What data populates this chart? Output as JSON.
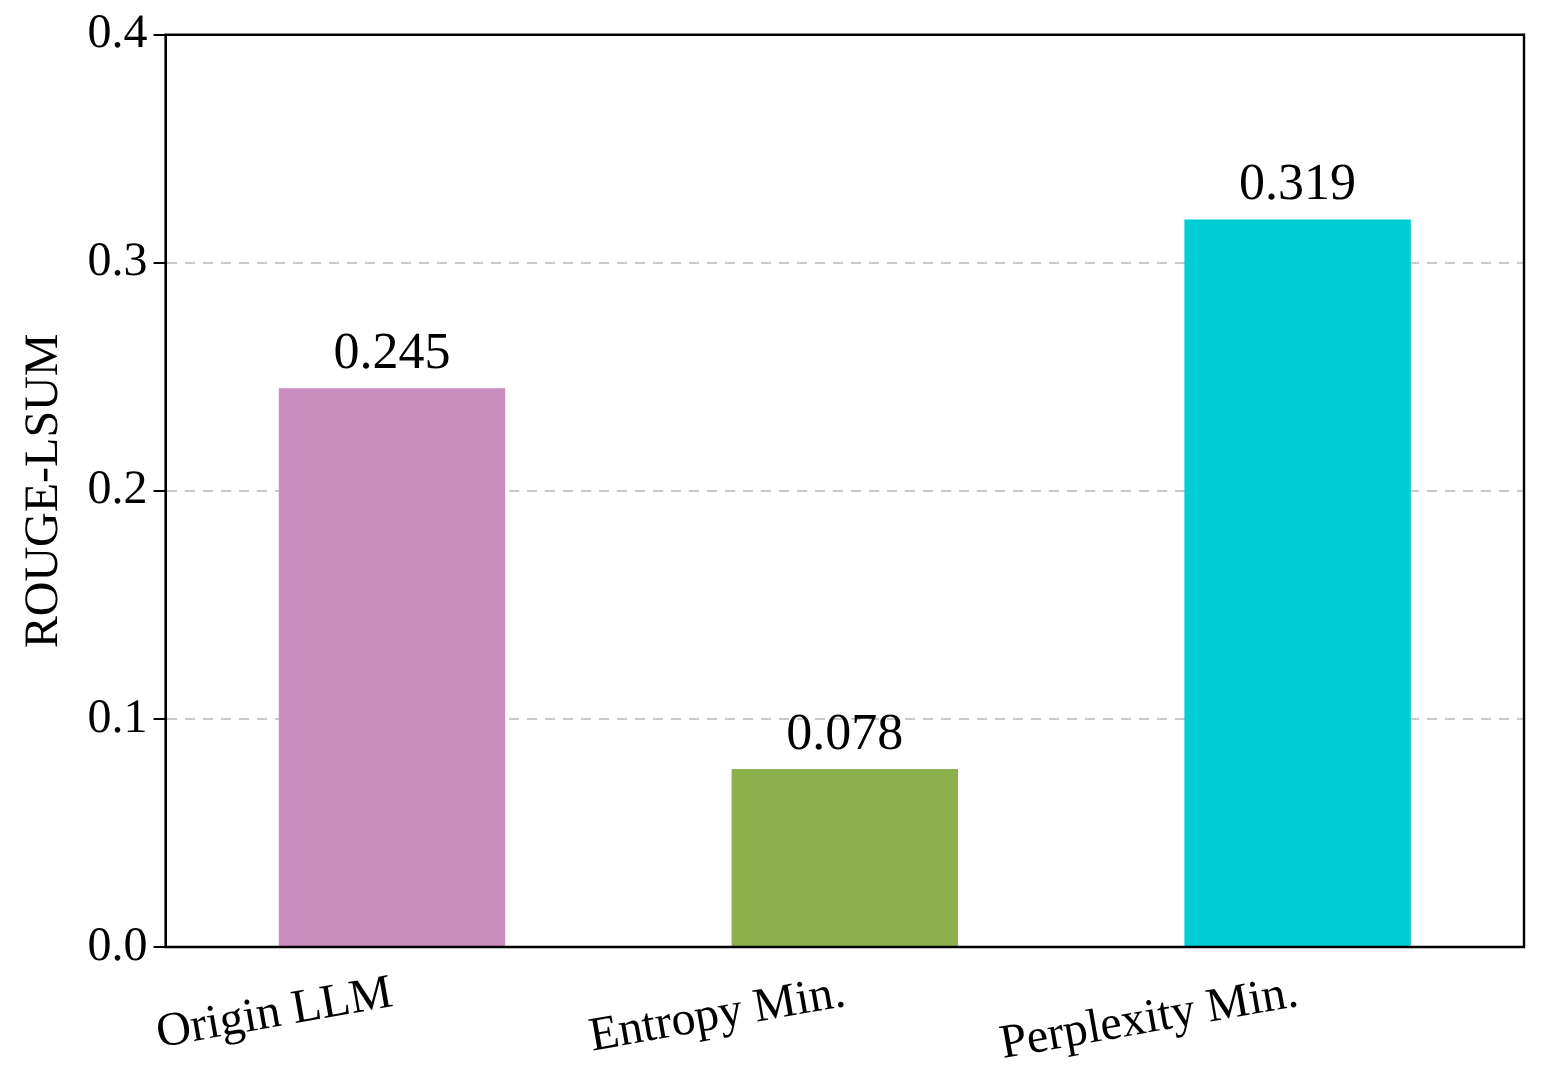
{
  "chart_data": {
    "type": "bar",
    "ylabel": "ROUGE-LSUM",
    "categories": [
      "Origin LLM",
      "Entropy Min.",
      "Perplexity Min."
    ],
    "values": [
      0.245,
      0.078,
      0.319
    ],
    "colors": [
      "#cc8ebf",
      "#8db04f",
      "#00cdd4"
    ],
    "ylim": [
      0,
      0.4
    ],
    "yticks": [
      {
        "value": 0,
        "label": "0.0"
      },
      0.1,
      0.2,
      0.3,
      0.4
    ],
    "grid": "y",
    "data_labels": true
  }
}
